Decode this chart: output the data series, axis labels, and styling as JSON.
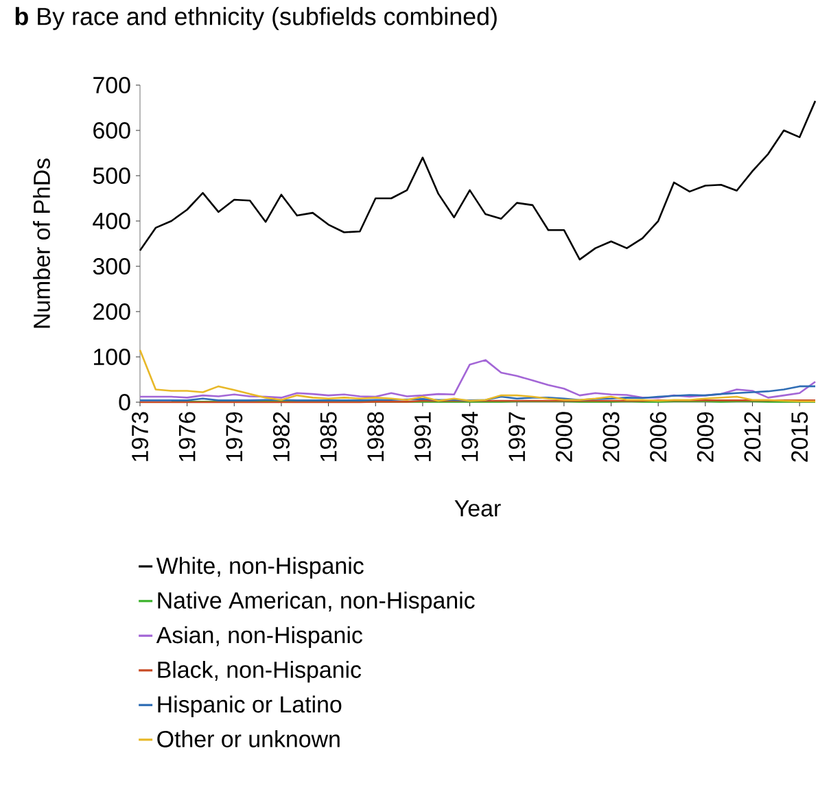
{
  "chart_data": {
    "type": "line",
    "title": "**b** By race and ethnicity (subfields combined)",
    "xlabel": "Year",
    "ylabel": "Number of PhDs",
    "x": [
      1973,
      1974,
      1975,
      1976,
      1977,
      1978,
      1979,
      1980,
      1981,
      1982,
      1983,
      1984,
      1985,
      1986,
      1987,
      1988,
      1989,
      1990,
      1991,
      1992,
      1993,
      1994,
      1995,
      1996,
      1997,
      1998,
      1999,
      2000,
      2001,
      2002,
      2003,
      2004,
      2005,
      2006,
      2007,
      2008,
      2009,
      2010,
      2011,
      2012,
      2013,
      2014,
      2015,
      2016
    ],
    "series": [
      {
        "name": "White, non-Hispanic",
        "color": "#000000",
        "values": [
          335,
          385,
          400,
          425,
          462,
          420,
          447,
          445,
          398,
          458,
          412,
          418,
          392,
          375,
          377,
          450,
          450,
          468,
          540,
          460,
          408,
          468,
          415,
          405,
          440,
          435,
          380,
          380,
          315,
          340,
          355,
          340,
          362,
          400,
          485,
          465,
          478,
          480,
          467,
          510,
          548,
          600,
          585,
          665
        ]
      },
      {
        "name": "Native American, non-Hispanic",
        "color": "#3cb22c",
        "values": [
          null,
          null,
          1,
          1,
          1,
          1,
          1,
          1,
          1,
          1,
          1,
          1,
          1,
          1,
          1,
          1,
          1,
          1,
          1,
          1,
          1,
          1,
          1,
          1,
          2,
          2,
          2,
          2,
          1,
          1,
          1,
          2,
          1,
          1,
          2,
          2,
          2,
          1,
          2,
          2,
          1,
          1,
          1,
          1
        ]
      },
      {
        "name": "Asian, non-Hispanic",
        "color": "#a366d6",
        "values": [
          12,
          12,
          12,
          10,
          15,
          13,
          17,
          13,
          12,
          10,
          20,
          18,
          15,
          17,
          13,
          12,
          20,
          13,
          15,
          18,
          17,
          83,
          93,
          65,
          58,
          48,
          38,
          30,
          15,
          20,
          17,
          16,
          10,
          10,
          15,
          12,
          15,
          18,
          28,
          25,
          10,
          15,
          20,
          45
        ]
      },
      {
        "name": "Black, non-Hispanic",
        "color": "#c84b25",
        "values": [
          0,
          0,
          0,
          0,
          0,
          0,
          0,
          0,
          0,
          0,
          0,
          0,
          0,
          0,
          0,
          1,
          1,
          1,
          3,
          3,
          3,
          3,
          3,
          3,
          3,
          3,
          3,
          3,
          3,
          3,
          3,
          3,
          3,
          4,
          4,
          4,
          4,
          4,
          4,
          4,
          4,
          4,
          4,
          4
        ]
      },
      {
        "name": "Hispanic or Latino",
        "color": "#2f6db5",
        "values": [
          4,
          4,
          4,
          4,
          8,
          4,
          4,
          4,
          5,
          5,
          4,
          4,
          4,
          4,
          4,
          5,
          5,
          6,
          7,
          5,
          5,
          4,
          5,
          12,
          8,
          10,
          10,
          8,
          5,
          7,
          8,
          10,
          9,
          12,
          14,
          16,
          15,
          18,
          20,
          22,
          24,
          28,
          35,
          35
        ]
      },
      {
        "name": "Other or unknown",
        "color": "#e8b828",
        "values": [
          115,
          28,
          25,
          25,
          22,
          35,
          27,
          18,
          10,
          5,
          15,
          10,
          8,
          10,
          8,
          10,
          8,
          5,
          12,
          3,
          8,
          3,
          5,
          15,
          15,
          12,
          8,
          5,
          5,
          8,
          12,
          5,
          5,
          3,
          5,
          5,
          8,
          10,
          12,
          5,
          5,
          3,
          2,
          2
        ]
      }
    ],
    "xlim": [
      1973,
      2016
    ],
    "ylim": [
      0,
      700
    ],
    "xticks": [
      1973,
      1976,
      1979,
      1982,
      1985,
      1988,
      1991,
      1994,
      1997,
      2000,
      2003,
      2006,
      2009,
      2012,
      2015
    ],
    "yticks": [
      0,
      100,
      200,
      300,
      400,
      500,
      600,
      700
    ],
    "legend": "bottom"
  }
}
